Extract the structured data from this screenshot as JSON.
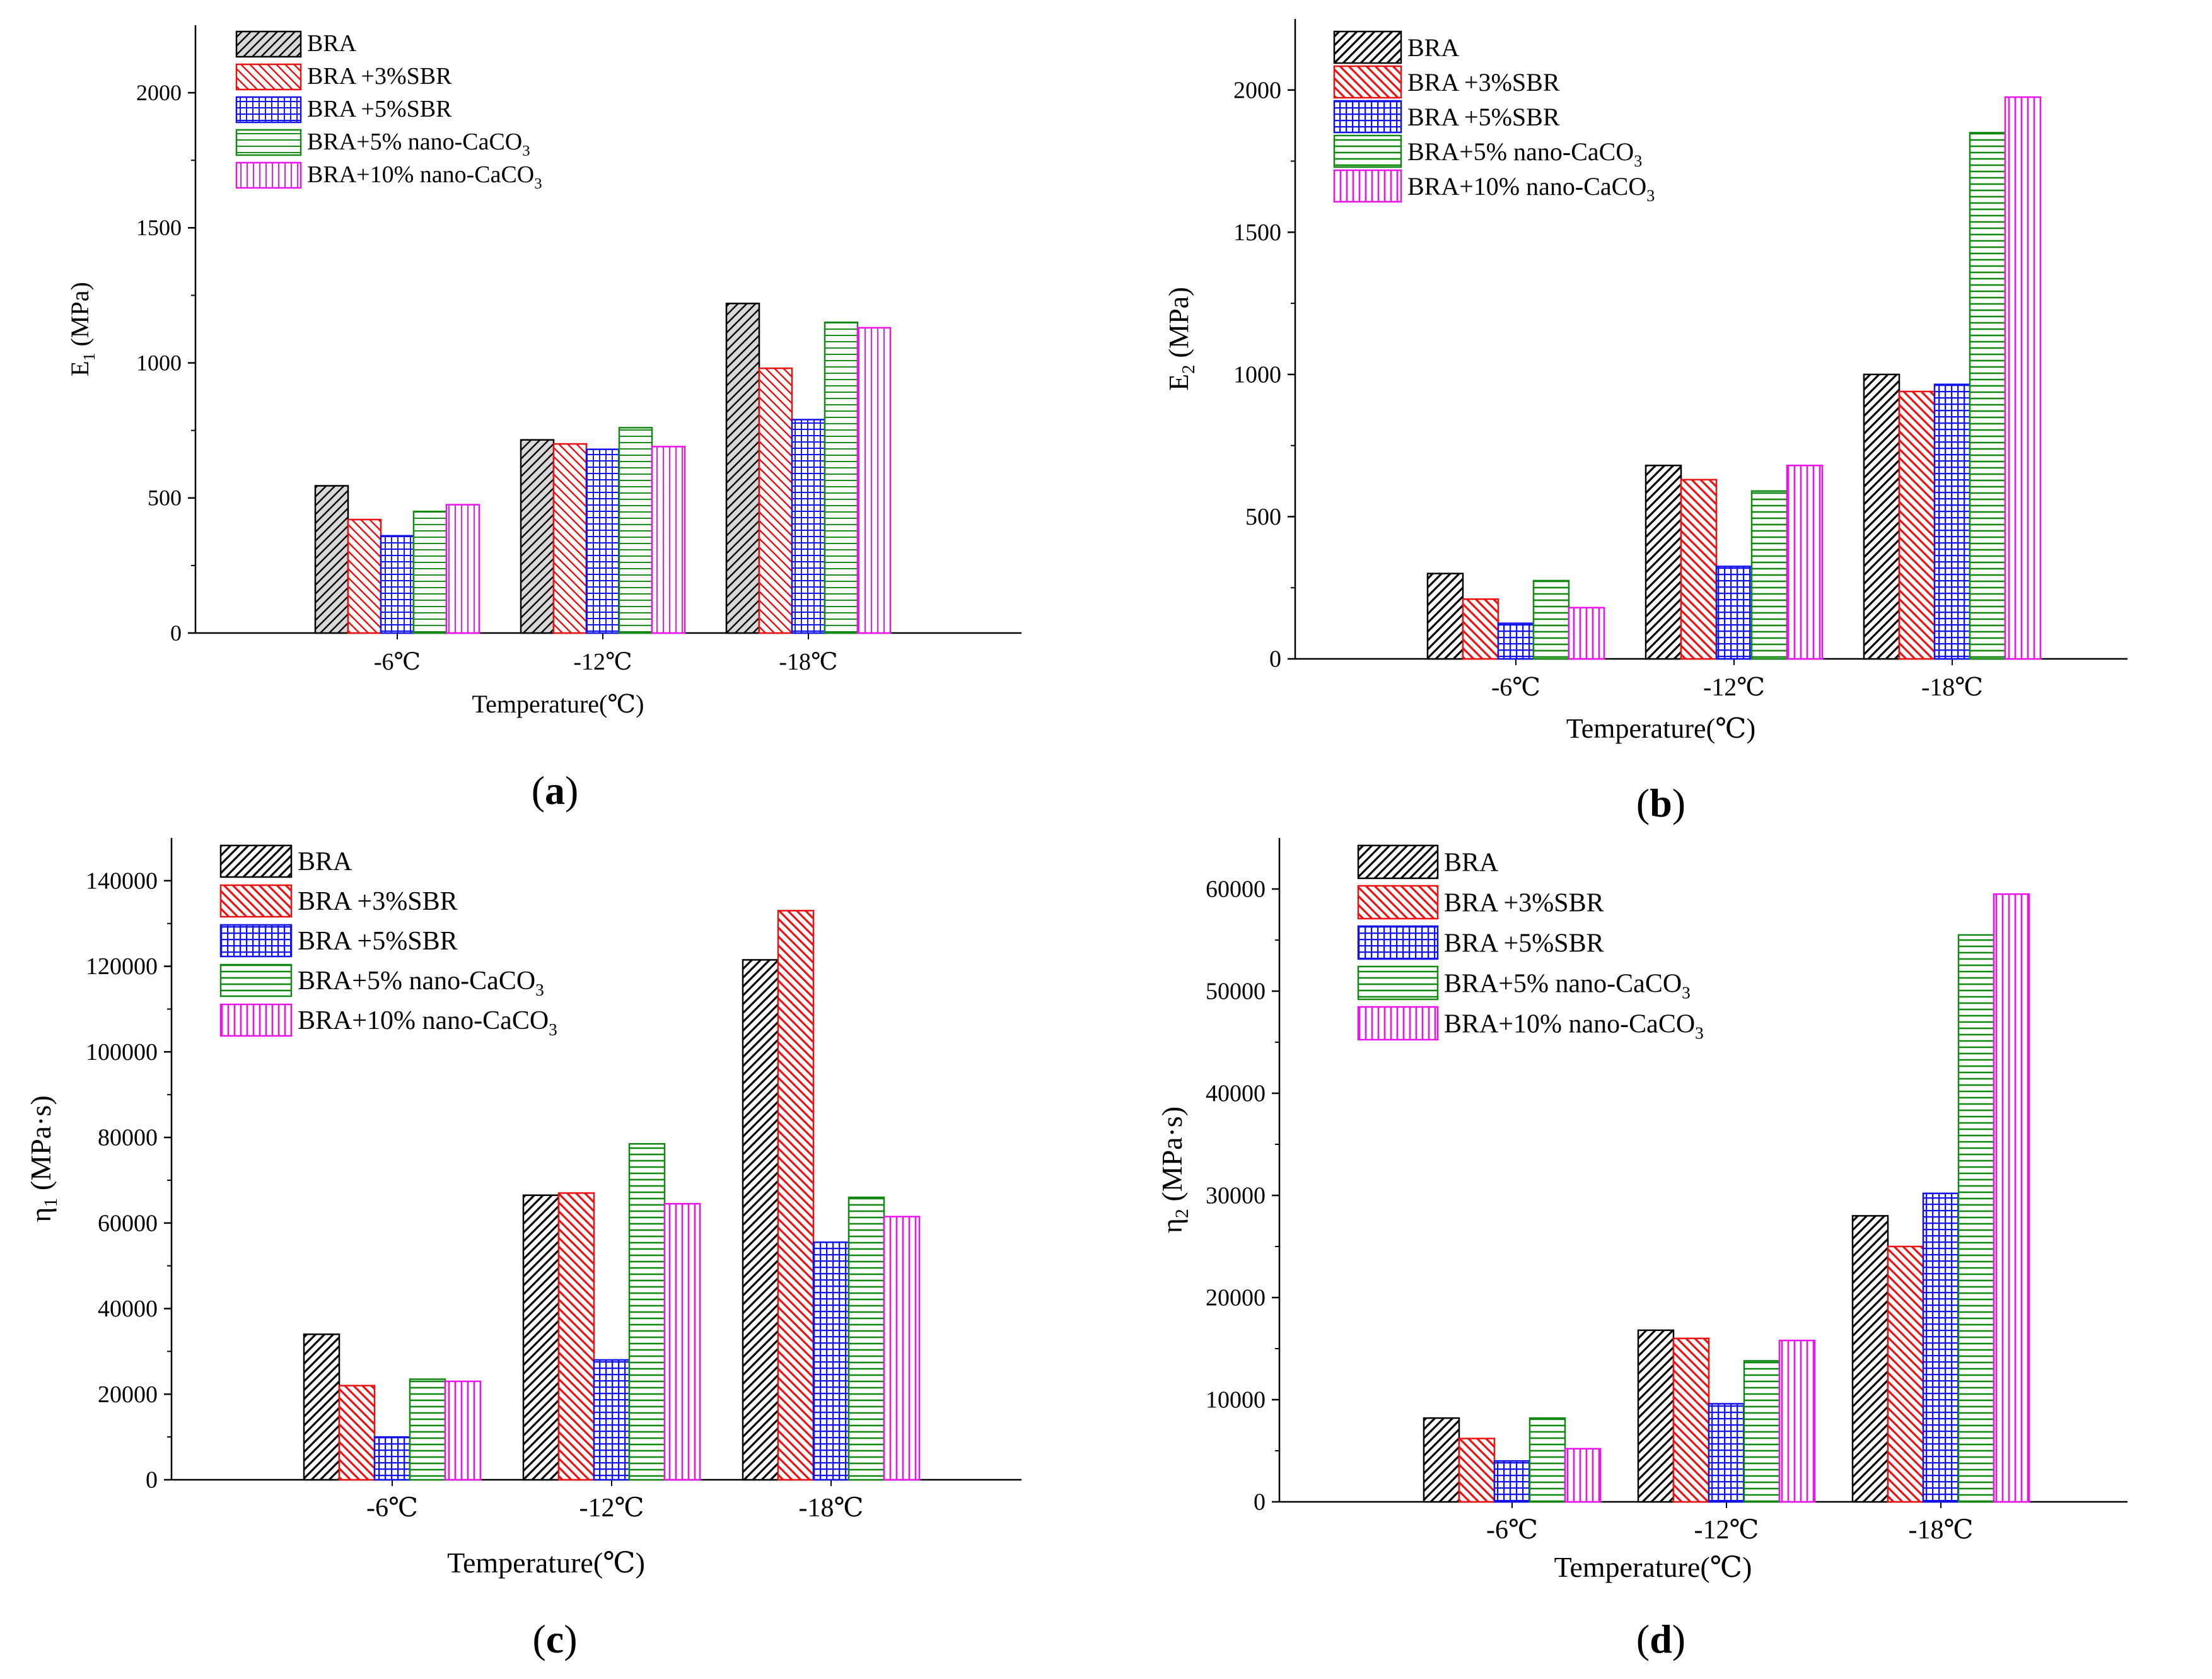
{
  "figure": {
    "series": [
      {
        "name": "BRA",
        "label_main": "BRA",
        "label_sub": "",
        "color": "#000000",
        "pattern": "diag"
      },
      {
        "name": "BRA +3%SBR",
        "label_main": "BRA +3%SBR",
        "label_sub": "",
        "color": "#ee1111",
        "pattern": "diag"
      },
      {
        "name": "BRA +5%SBR",
        "label_main": "BRA +5%SBR",
        "label_sub": "",
        "color": "#1111ee",
        "pattern": "grid"
      },
      {
        "name": "BRA+5% nano-CaCO3",
        "label_main": "BRA+5% nano-CaCO",
        "label_sub": "3",
        "color": "#118811",
        "pattern": "horiz"
      },
      {
        "name": "BRA+10% nano-CaCO3",
        "label_main": "BRA+10% nano-CaCO",
        "label_sub": "3",
        "color": "#ee11ee",
        "pattern": "vert"
      }
    ]
  },
  "chart_data": [
    {
      "type": "bar",
      "panel_label": "(a)",
      "xlabel": "Temperature(℃)",
      "ylabel_main": "E",
      "ylabel_sub": "1",
      "ylabel_unit": " (MPa)",
      "categories": [
        "-6℃",
        "-12℃",
        "-18℃"
      ],
      "ylim": [
        0,
        2250
      ],
      "yticks": [
        "0",
        "500",
        "1000",
        "1500",
        "2000"
      ],
      "ytick_values": [
        0,
        500,
        1000,
        1500,
        2000
      ],
      "style": "light",
      "series": [
        {
          "name": "BRA",
          "values": [
            545,
            715,
            1220
          ]
        },
        {
          "name": "BRA +3%SBR",
          "values": [
            420,
            700,
            980
          ]
        },
        {
          "name": "BRA +5%SBR",
          "values": [
            360,
            680,
            790
          ]
        },
        {
          "name": "BRA+5% nano-CaCO3",
          "values": [
            450,
            760,
            1150
          ]
        },
        {
          "name": "BRA+10% nano-CaCO3",
          "values": [
            475,
            690,
            1130
          ]
        }
      ]
    },
    {
      "type": "bar",
      "panel_label": "(b)",
      "xlabel": "Temperature(℃)",
      "ylabel_main": "E",
      "ylabel_sub": "2",
      "ylabel_unit": " (MPa)",
      "categories": [
        "-6℃",
        "-12℃",
        "-18℃"
      ],
      "ylim": [
        0,
        2250
      ],
      "yticks": [
        "0",
        "500",
        "1000",
        "1500",
        "2000"
      ],
      "ytick_values": [
        0,
        500,
        1000,
        1500,
        2000
      ],
      "style": "bold",
      "series": [
        {
          "name": "BRA",
          "values": [
            300,
            680,
            1000
          ]
        },
        {
          "name": "BRA +3%SBR",
          "values": [
            210,
            630,
            940
          ]
        },
        {
          "name": "BRA +5%SBR",
          "values": [
            125,
            325,
            965
          ]
        },
        {
          "name": "BRA+5% nano-CaCO3",
          "values": [
            275,
            590,
            1850
          ]
        },
        {
          "name": "BRA+10% nano-CaCO3",
          "values": [
            180,
            680,
            1975
          ]
        }
      ]
    },
    {
      "type": "bar",
      "panel_label": "(c)",
      "xlabel": "Temperature(℃)",
      "ylabel_main": "η",
      "ylabel_sub": "1",
      "ylabel_unit": " (MPa·s)",
      "categories": [
        "-6℃",
        "-12℃",
        "-18℃"
      ],
      "ylim": [
        0,
        150000
      ],
      "yticks": [
        "0",
        "20000",
        "40000",
        "60000",
        "80000",
        "100000",
        "120000",
        "140000"
      ],
      "ytick_values": [
        0,
        20000,
        40000,
        60000,
        80000,
        100000,
        120000,
        140000
      ],
      "style": "bold",
      "series": [
        {
          "name": "BRA",
          "values": [
            34000,
            66500,
            121500
          ]
        },
        {
          "name": "BRA +3%SBR",
          "values": [
            22000,
            67000,
            133000
          ]
        },
        {
          "name": "BRA +5%SBR",
          "values": [
            10000,
            28000,
            55500
          ]
        },
        {
          "name": "BRA+5% nano-CaCO3",
          "values": [
            23500,
            78500,
            66000
          ]
        },
        {
          "name": "BRA+10% nano-CaCO3",
          "values": [
            23000,
            64500,
            61500
          ]
        }
      ]
    },
    {
      "type": "bar",
      "panel_label": "(d)",
      "xlabel": "Temperature(℃)",
      "ylabel_main": "η",
      "ylabel_sub": "2",
      "ylabel_unit": " (MPa·s)",
      "categories": [
        "-6℃",
        "-12℃",
        "-18℃"
      ],
      "ylim": [
        0,
        65000
      ],
      "yticks": [
        "0",
        "10000",
        "20000",
        "30000",
        "40000",
        "50000",
        "60000"
      ],
      "ytick_values": [
        0,
        10000,
        20000,
        30000,
        40000,
        50000,
        60000
      ],
      "style": "bold",
      "series": [
        {
          "name": "BRA",
          "values": [
            8200,
            16800,
            28000
          ]
        },
        {
          "name": "BRA +3%SBR",
          "values": [
            6200,
            16000,
            25000
          ]
        },
        {
          "name": "BRA +5%SBR",
          "values": [
            4000,
            9600,
            30200
          ]
        },
        {
          "name": "BRA+5% nano-CaCO3",
          "values": [
            8200,
            13800,
            55500
          ]
        },
        {
          "name": "BRA+10% nano-CaCO3",
          "values": [
            5200,
            15800,
            59500
          ]
        }
      ]
    }
  ]
}
